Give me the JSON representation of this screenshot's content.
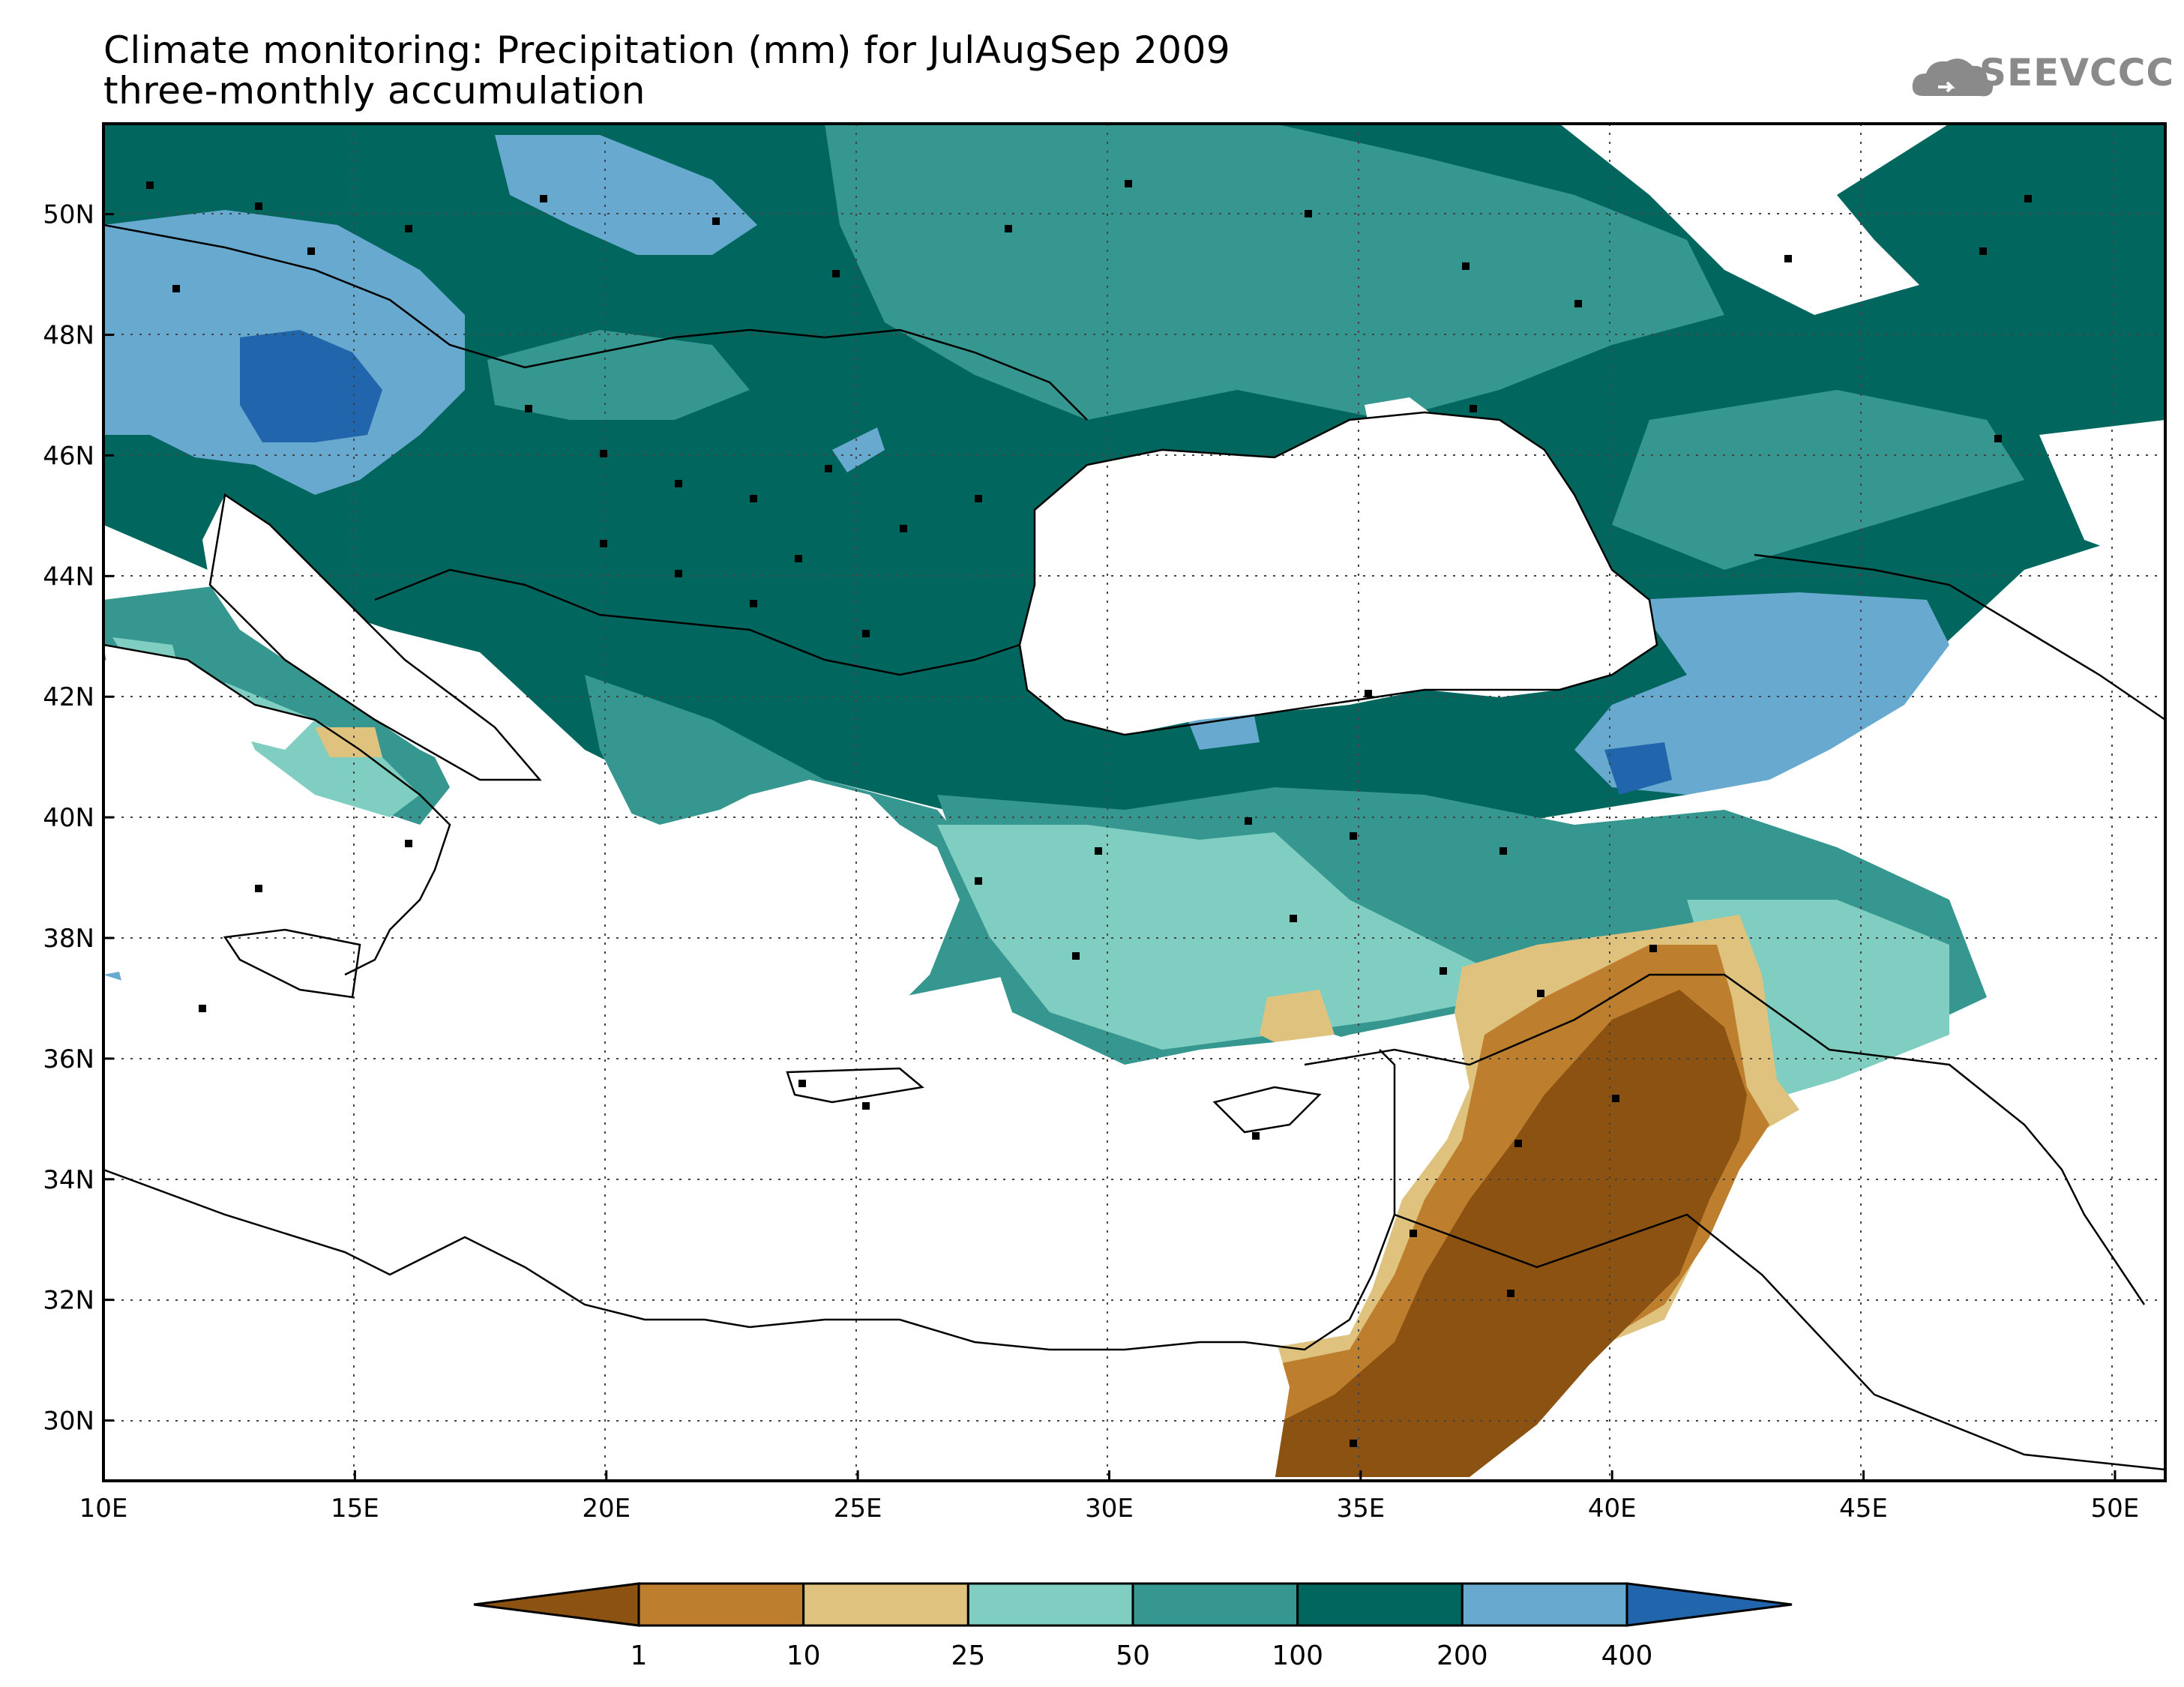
{
  "title": {
    "line1": "Climate monitoring: Precipitation (mm) for JulAugSep 2009",
    "line2": "three-monthly accumulation"
  },
  "logo": {
    "text": "SEEVCCC",
    "icon": "cloud-icon"
  },
  "map": {
    "lon_range": [
      10,
      51
    ],
    "lat_range": [
      29,
      51.5
    ],
    "lon_ticks": [
      "10E",
      "15E",
      "20E",
      "25E",
      "30E",
      "35E",
      "40E",
      "45E",
      "50E"
    ],
    "lat_ticks": [
      "30N",
      "32N",
      "34N",
      "36N",
      "38N",
      "40N",
      "42N",
      "44N",
      "46N",
      "48N",
      "50N"
    ],
    "grid": "dotted",
    "station_marker": "black square"
  },
  "legend": {
    "breaks": [
      "1",
      "10",
      "25",
      "50",
      "100",
      "200",
      "400"
    ],
    "colors": [
      "#8b5211",
      "#bd7f2e",
      "#dfc27d",
      "#80cdc1",
      "#35978f",
      "#01665e",
      "#67a9cf",
      "#2166ac"
    ]
  }
}
